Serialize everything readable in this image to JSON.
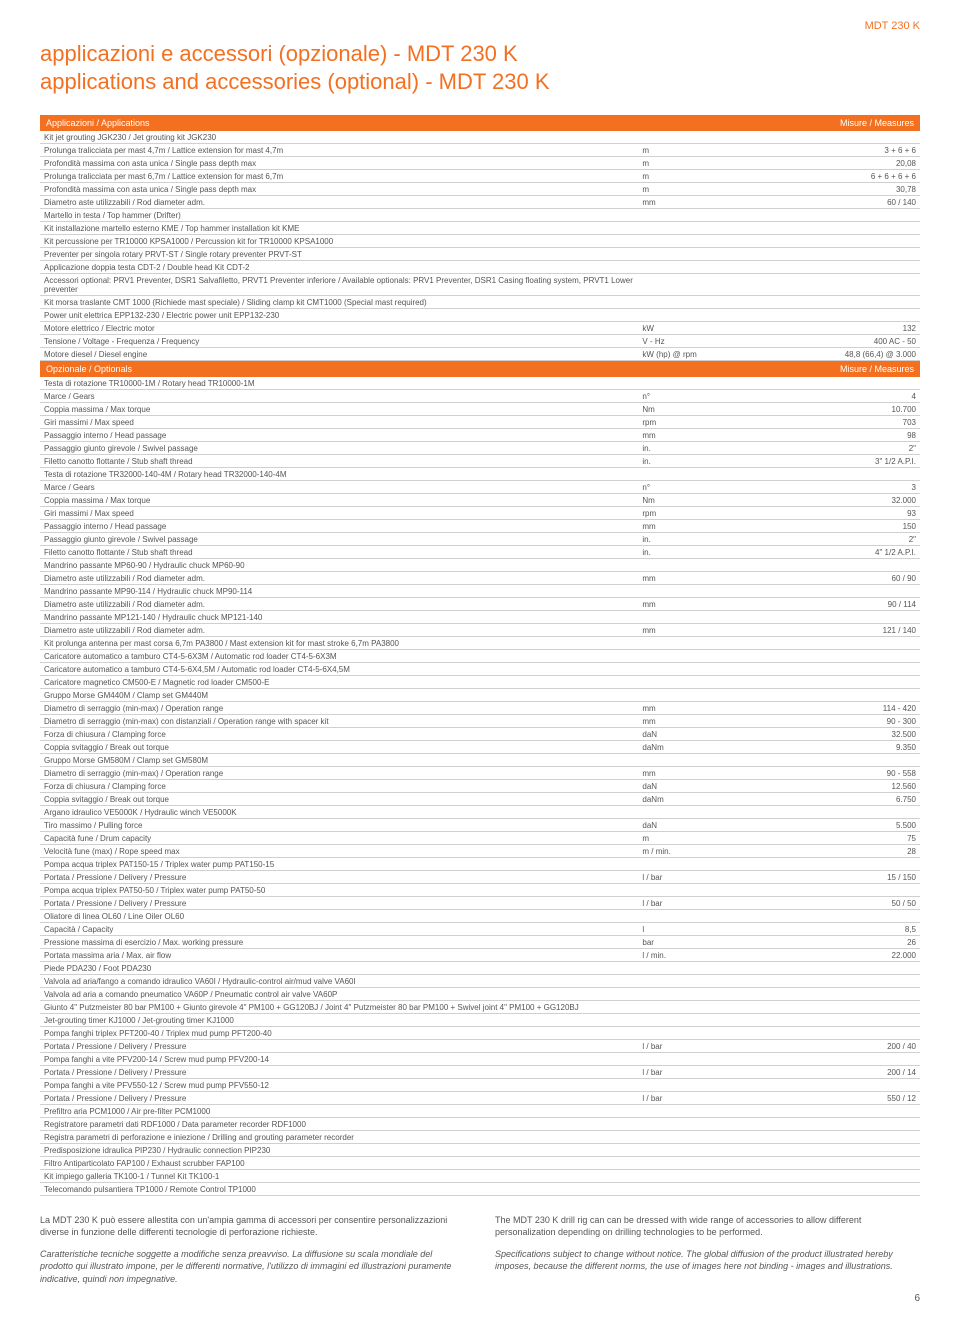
{
  "colors": {
    "accent": "#f37021",
    "text": "#555555",
    "border": "#d0d0d0",
    "white": "#ffffff"
  },
  "header_label": "MDT 230 K",
  "title_it": "applicazioni e accessori (opzionale) - MDT 230 K",
  "title_en": "applications and accessories (optional) - MDT 230 K",
  "applications": {
    "header_left": "Applicazioni / Applications",
    "header_right": "Misure / Measures",
    "rows": [
      {
        "label": "Kit jet grouting JGK230 / Jet grouting kit JGK230",
        "unit": "",
        "val": ""
      },
      {
        "label": "Prolunga tralicciata per mast 4,7m / Lattice extension for mast 4,7m",
        "unit": "m",
        "val": "3 + 6 + 6"
      },
      {
        "label": "Profondità massima con asta unica / Single pass depth max",
        "unit": "m",
        "val": "20,08"
      },
      {
        "label": "Prolunga tralicciata per mast 6,7m / Lattice extension for mast 6,7m",
        "unit": "m",
        "val": "6 + 6 + 6 + 6"
      },
      {
        "label": "Profondità massima con asta unica / Single pass depth max",
        "unit": "m",
        "val": "30,78"
      },
      {
        "label": "Diametro aste utilizzabili / Rod diameter adm.",
        "unit": "mm",
        "val": "60 / 140"
      },
      {
        "label": "Martello in testa / Top hammer (Drifter)",
        "unit": "",
        "val": ""
      },
      {
        "label": "Kit installazione martello esterno KME / Top hammer installation kit KME",
        "unit": "",
        "val": ""
      },
      {
        "label": "Kit percussione per TR10000 KPSA1000 / Percussion kit for TR10000 KPSA1000",
        "unit": "",
        "val": ""
      },
      {
        "label": "Preventer per singola rotary PRVT-ST / Single rotary preventer PRVT-ST",
        "unit": "",
        "val": ""
      },
      {
        "label": "Applicazione doppia testa CDT-2 / Double head Kit CDT-2",
        "unit": "",
        "val": ""
      },
      {
        "label": "Accessori optional: PRV1 Preventer, DSR1 Salvafiletto, PRVT1 Preventer inferiore / Available optionals: PRV1 Preventer, DSR1 Casing floating system, PRVT1 Lower preventer",
        "unit": "",
        "val": ""
      },
      {
        "label": "Kit morsa traslante CMT 1000 (Richiede mast speciale) / Sliding clamp kit CMT1000 (Special mast required)",
        "unit": "",
        "val": ""
      },
      {
        "label": "Power unit elettrica EPP132-230 / Electric power unit EPP132-230",
        "unit": "",
        "val": ""
      },
      {
        "label": "Motore elettrico / Electric motor",
        "unit": "kW",
        "val": "132"
      },
      {
        "label": "Tensione / Voltage - Frequenza / Frequency",
        "unit": "V - Hz",
        "val": "400 AC - 50"
      },
      {
        "label": "Motore diesel / Diesel engine",
        "unit": "kW (hp) @ rpm",
        "val": "48,8 (66,4) @ 3.000"
      }
    ]
  },
  "optionals": {
    "header_left": "Opzionale / Optionals",
    "header_right": "Misure / Measures",
    "rows": [
      {
        "label": "Testa di rotazione TR10000-1M / Rotary head TR10000-1M",
        "unit": "",
        "val": ""
      },
      {
        "label": "Marce / Gears",
        "unit": "n°",
        "val": "4"
      },
      {
        "label": "Coppia massima / Max torque",
        "unit": "Nm",
        "val": "10.700"
      },
      {
        "label": "Giri massimi / Max speed",
        "unit": "rpm",
        "val": "703"
      },
      {
        "label": "Passaggio interno / Head passage",
        "unit": "mm",
        "val": "98"
      },
      {
        "label": "Passaggio giunto girevole / Swivel passage",
        "unit": "in.",
        "val": "2\""
      },
      {
        "label": "Filetto canotto flottante / Stub shaft thread",
        "unit": "in.",
        "val": "3\" 1/2 A.P.I."
      },
      {
        "label": "Testa di rotazione TR32000-140-4M / Rotary head TR32000-140-4M",
        "unit": "",
        "val": ""
      },
      {
        "label": "Marce / Gears",
        "unit": "n°",
        "val": "3"
      },
      {
        "label": "Coppia massima / Max torque",
        "unit": "Nm",
        "val": "32.000"
      },
      {
        "label": "Giri massimi / Max speed",
        "unit": "rpm",
        "val": "93"
      },
      {
        "label": "Passaggio interno / Head passage",
        "unit": "mm",
        "val": "150"
      },
      {
        "label": "Passaggio giunto girevole / Swivel passage",
        "unit": "in.",
        "val": "2\""
      },
      {
        "label": "Filetto canotto flottante / Stub shaft thread",
        "unit": "in.",
        "val": "4\" 1/2 A.P.I."
      },
      {
        "label": "Mandrino passante MP60-90 / Hydraulic chuck MP60-90",
        "unit": "",
        "val": ""
      },
      {
        "label": "Diametro aste utilizzabili / Rod diameter adm.",
        "unit": "mm",
        "val": "60 / 90"
      },
      {
        "label": "Mandrino passante MP90-114 / Hydraulic chuck MP90-114",
        "unit": "",
        "val": ""
      },
      {
        "label": "Diametro aste utilizzabili / Rod diameter adm.",
        "unit": "mm",
        "val": "90 / 114"
      },
      {
        "label": "Mandrino passante MP121-140 / Hydraulic chuck MP121-140",
        "unit": "",
        "val": ""
      },
      {
        "label": "Diametro aste utilizzabili / Rod diameter adm.",
        "unit": "mm",
        "val": "121 / 140"
      },
      {
        "label": "Kit prolunga antenna per mast corsa 6,7m PA3800 / Mast extension kit for mast stroke 6,7m PA3800",
        "unit": "",
        "val": ""
      },
      {
        "label": "Caricatore automatico a tamburo CT4-5-6X3M / Automatic rod loader CT4-5-6X3M",
        "unit": "",
        "val": ""
      },
      {
        "label": "Caricatore automatico a tamburo CT4-5-6X4,5M / Automatic rod loader CT4-5-6X4,5M",
        "unit": "",
        "val": ""
      },
      {
        "label": "Caricatore magnetico CM500-E / Magnetic rod loader CM500-E",
        "unit": "",
        "val": ""
      },
      {
        "label": "Gruppo Morse GM440M / Clamp set GM440M",
        "unit": "",
        "val": ""
      },
      {
        "label": "Diametro di serraggio (min-max) / Operation range",
        "unit": "mm",
        "val": "114 - 420"
      },
      {
        "label": "Diametro di serraggio (min-max) con distanziali / Operation range with spacer kit",
        "unit": "mm",
        "val": "90 - 300"
      },
      {
        "label": "Forza di chiusura / Clamping force",
        "unit": "daN",
        "val": "32.500"
      },
      {
        "label": "Coppia svitaggio / Break out torque",
        "unit": "daNm",
        "val": "9.350"
      },
      {
        "label": "Gruppo Morse GM580M / Clamp set GM580M",
        "unit": "",
        "val": ""
      },
      {
        "label": "Diametro di serraggio (min-max) / Operation range",
        "unit": "mm",
        "val": "90 - 558"
      },
      {
        "label": "Forza di chiusura / Clamping force",
        "unit": "daN",
        "val": "12.560"
      },
      {
        "label": "Coppia svitaggio / Break out torque",
        "unit": "daNm",
        "val": "6.750"
      },
      {
        "label": "Argano idraulico VE5000K / Hydraulic winch VE5000K",
        "unit": "",
        "val": ""
      },
      {
        "label": "Tiro massimo / Pulling force",
        "unit": "daN",
        "val": "5.500"
      },
      {
        "label": "Capacità fune / Drum capacity",
        "unit": "m",
        "val": "75"
      },
      {
        "label": "Velocità fune (max) / Rope speed max",
        "unit": "m / min.",
        "val": "28"
      },
      {
        "label": "Pompa acqua triplex PAT150-15 / Triplex water pump PAT150-15",
        "unit": "",
        "val": ""
      },
      {
        "label": "Portata / Pressione / Delivery / Pressure",
        "unit": "l / bar",
        "val": "15 / 150"
      },
      {
        "label": "Pompa acqua triplex PAT50-50 / Triplex water pump PAT50-50",
        "unit": "",
        "val": ""
      },
      {
        "label": "Portata / Pressione / Delivery / Pressure",
        "unit": "l / bar",
        "val": "50 / 50"
      },
      {
        "label": "Oliatore di linea OL60 / Line Oiler OL60",
        "unit": "",
        "val": ""
      },
      {
        "label": "Capacità / Capacity",
        "unit": "l",
        "val": "8,5"
      },
      {
        "label": "Pressione massima di esercizio / Max. working pressure",
        "unit": "bar",
        "val": "26"
      },
      {
        "label": "Portata massima aria / Max. air flow",
        "unit": "l / min.",
        "val": "22.000"
      },
      {
        "label": "Piede PDA230 / Foot PDA230",
        "unit": "",
        "val": ""
      },
      {
        "label": "Valvola ad aria/fango a comando idraulico VA60I / Hydraulic-control air/mud valve VA60I",
        "unit": "",
        "val": ""
      },
      {
        "label": "Valvola ad aria a comando pneumatico VA60P / Pneumatic control air valve VA60P",
        "unit": "",
        "val": ""
      },
      {
        "label": "Giunto 4\" Putzmeister 80 bar PM100 + Giunto girevole 4\" PM100 + GG120BJ / Joint 4\" Putzmeister 80 bar PM100 + Swivel joint 4\" PM100 + GG120BJ",
        "unit": "",
        "val": ""
      },
      {
        "label": "Jet-grouting timer KJ1000 / Jet-grouting timer KJ1000",
        "unit": "",
        "val": ""
      },
      {
        "label": "Pompa fanghi triplex PFT200-40 / Triplex mud pump PFT200-40",
        "unit": "",
        "val": ""
      },
      {
        "label": "Portata / Pressione / Delivery / Pressure",
        "unit": "l / bar",
        "val": "200 / 40"
      },
      {
        "label": "Pompa fanghi a vite PFV200-14 / Screw mud pump PFV200-14",
        "unit": "",
        "val": ""
      },
      {
        "label": "Portata / Pressione / Delivery / Pressure",
        "unit": "l / bar",
        "val": "200 / 14"
      },
      {
        "label": "Pompa fanghi a vite PFV550-12 / Screw mud pump PFV550-12",
        "unit": "",
        "val": ""
      },
      {
        "label": "Portata / Pressione / Delivery / Pressure",
        "unit": "l / bar",
        "val": "550 / 12"
      },
      {
        "label": "Prefiltro aria PCM1000 / Air pre-filter PCM1000",
        "unit": "",
        "val": ""
      },
      {
        "label": "Registratore parametri dati RDF1000 / Data parameter recorder RDF1000",
        "unit": "",
        "val": ""
      },
      {
        "label": "Registra parametri di perforazione e iniezione / Drilling and grouting parameter recorder",
        "unit": "",
        "val": ""
      },
      {
        "label": "Predisposizione idraulica PIP230 / Hydraulic connection PIP230",
        "unit": "",
        "val": ""
      },
      {
        "label": "Filtro Antiparticolato FAP100 / Exhaust scrubber FAP100",
        "unit": "",
        "val": ""
      },
      {
        "label": "Kit impiego galleria TK100-1 / Tunnel Kit TK100-1",
        "unit": "",
        "val": ""
      },
      {
        "label": "Telecomando pulsantiera TP1000 / Remote Control TP1000",
        "unit": "",
        "val": ""
      }
    ]
  },
  "footer": {
    "left_p1": "La MDT 230 K può essere allestita con un'ampia gamma di accessori per consentire personalizzazioni diverse in funzione delle differenti tecnologie di perforazione richieste.",
    "left_p2": "Caratteristiche tecniche soggette a modifiche senza preavviso. La diffusione su scala mondiale del prodotto qui illustrato impone, per le differenti normative, l'utilizzo di immagini ed illustrazioni puramente indicative, quindi non impegnative.",
    "right_p1": "The MDT 230 K drill rig can can be dressed with wide range of accessories to allow different personalization depending on drilling technologies to be performed.",
    "right_p2": "Specifications subject to change without notice. The global diffusion of the product illustrated hereby imposes, because the different norms, the use of images here not binding - images and illustrations."
  },
  "page_number": "6"
}
